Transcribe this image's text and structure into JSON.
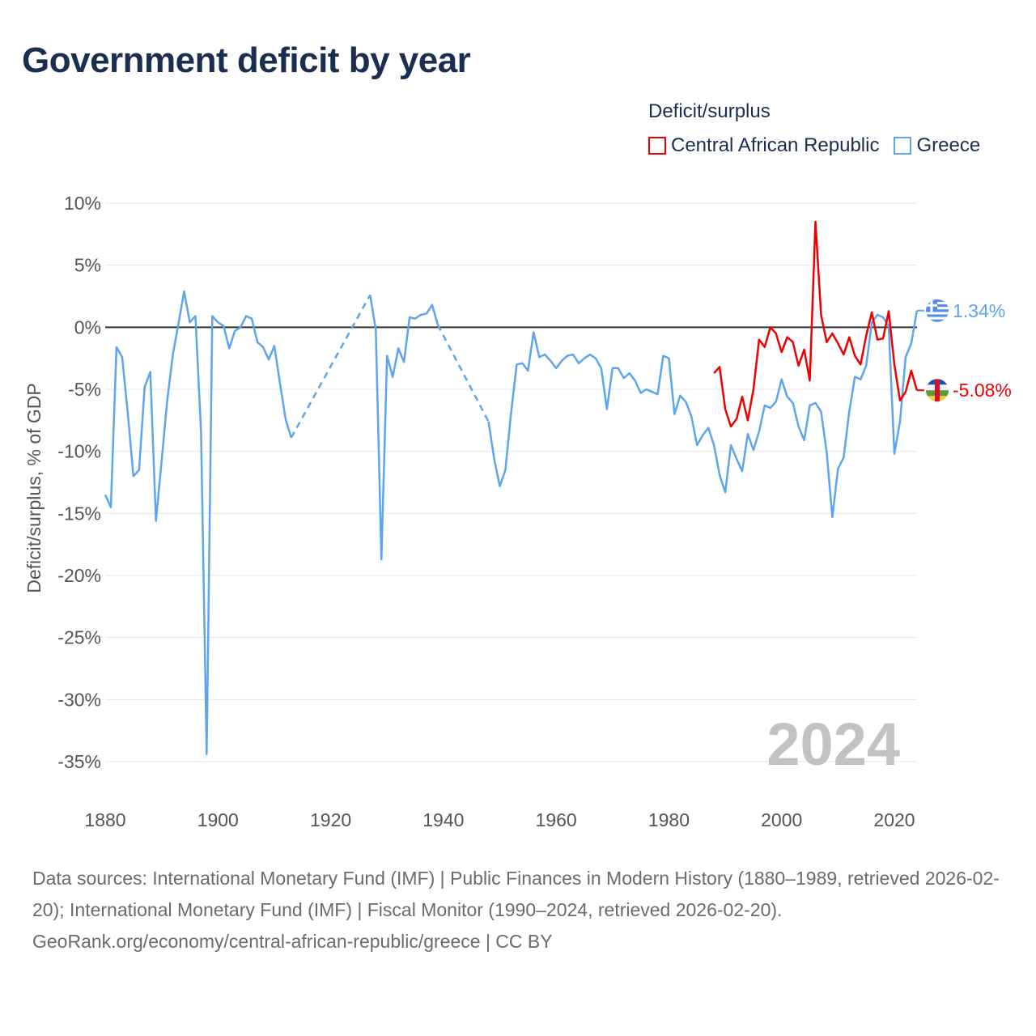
{
  "title": "Government deficit by year",
  "legend": {
    "title": "Deficit/surplus",
    "items": [
      {
        "label": "Central African Republic",
        "color": "#ee0000"
      },
      {
        "label": "Greece",
        "color": "#5da5ec"
      }
    ]
  },
  "footer": {
    "sources": "Data sources: International Monetary Fund (IMF) | Public Finances in Modern History (1880–1989, retrieved 2026-02-20); International Monetary Fund (IMF) | Fiscal Monitor (1990–2024, retrieved 2026-02-20).",
    "credit": "GeoRank.org/economy/central-african-republic/greece | CC BY"
  },
  "chart_data": {
    "type": "line",
    "title": "Government deficit by year",
    "xlabel": "",
    "ylabel": "Deficit/surplus, % of GDP",
    "xlim": [
      1880,
      2024
    ],
    "ylim": [
      -35,
      10
    ],
    "xticks": [
      1880,
      1900,
      1920,
      1940,
      1960,
      1980,
      2000,
      2020
    ],
    "yticks": [
      10,
      5,
      0,
      -5,
      -10,
      -15,
      -20,
      -25,
      -30,
      -35
    ],
    "ytick_labels": [
      "10%",
      "5%",
      "0%",
      "-5%",
      "-10%",
      "-15%",
      "-20%",
      "-25%",
      "-30%",
      "-35%"
    ],
    "xtick_labels": [
      "1880",
      "1900",
      "1920",
      "1940",
      "1960",
      "1980",
      "2000",
      "2020"
    ],
    "watermark_year": "2024",
    "grid": true,
    "legend_position": "top-right",
    "series": [
      {
        "name": "Greece",
        "color": "#5da5ec",
        "end_label": "1.34%",
        "flag": "greece",
        "gap_style": "dashed",
        "points": [
          [
            1880,
            -13.5
          ],
          [
            1881,
            -14.5
          ],
          [
            1882,
            -1.6
          ],
          [
            1883,
            -2.4
          ],
          [
            1884,
            -6.9
          ],
          [
            1885,
            -12
          ],
          [
            1886,
            -11.5
          ],
          [
            1887,
            -4.8
          ],
          [
            1888,
            -3.6
          ],
          [
            1889,
            -15.6
          ],
          [
            1890,
            -10.8
          ],
          [
            1891,
            -5.9
          ],
          [
            1892,
            -2.2
          ],
          [
            1893,
            0.3
          ],
          [
            1894,
            2.9
          ],
          [
            1895,
            0.4
          ],
          [
            1896,
            0.9
          ],
          [
            1897,
            -8.4
          ],
          [
            1898,
            -34.4
          ],
          [
            1899,
            0.9
          ],
          [
            1900,
            0.4
          ],
          [
            1901,
            0.1
          ],
          [
            1902,
            -1.7
          ],
          [
            1903,
            -0.3
          ],
          [
            1904,
            0
          ],
          [
            1905,
            0.9
          ],
          [
            1906,
            0.7
          ],
          [
            1907,
            -1.2
          ],
          [
            1908,
            -1.6
          ],
          [
            1909,
            -2.6
          ],
          [
            1910,
            -1.5
          ],
          [
            1911,
            -4.5
          ],
          [
            1912,
            -7.4
          ],
          [
            1913,
            -8.9
          ],
          [
            1927,
            2.6
          ],
          [
            1928,
            -0.2
          ],
          [
            1929,
            -18.7
          ],
          [
            1930,
            -2.3
          ],
          [
            1931,
            -4
          ],
          [
            1932,
            -1.7
          ],
          [
            1933,
            -2.8
          ],
          [
            1934,
            0.8
          ],
          [
            1935,
            0.7
          ],
          [
            1936,
            1.0
          ],
          [
            1937,
            1.1
          ],
          [
            1938,
            1.8
          ],
          [
            1939,
            0.2
          ],
          [
            1948,
            -7.6
          ],
          [
            1949,
            -10.6
          ],
          [
            1950,
            -12.8
          ],
          [
            1951,
            -11.5
          ],
          [
            1952,
            -6.9
          ],
          [
            1953,
            -3.0
          ],
          [
            1954,
            -2.9
          ],
          [
            1955,
            -3.5
          ],
          [
            1956,
            -0.4
          ],
          [
            1957,
            -2.4
          ],
          [
            1958,
            -2.2
          ],
          [
            1959,
            -2.7
          ],
          [
            1960,
            -3.3
          ],
          [
            1961,
            -2.7
          ],
          [
            1962,
            -2.3
          ],
          [
            1963,
            -2.2
          ],
          [
            1964,
            -2.9
          ],
          [
            1965,
            -2.5
          ],
          [
            1966,
            -2.2
          ],
          [
            1967,
            -2.5
          ],
          [
            1968,
            -3.3
          ],
          [
            1969,
            -6.6
          ],
          [
            1970,
            -3.3
          ],
          [
            1971,
            -3.3
          ],
          [
            1972,
            -4.1
          ],
          [
            1973,
            -3.7
          ],
          [
            1974,
            -4.3
          ],
          [
            1975,
            -5.3
          ],
          [
            1976,
            -5.0
          ],
          [
            1977,
            -5.2
          ],
          [
            1978,
            -5.4
          ],
          [
            1979,
            -2.3
          ],
          [
            1980,
            -2.5
          ],
          [
            1981,
            -7.0
          ],
          [
            1982,
            -5.5
          ],
          [
            1983,
            -6.0
          ],
          [
            1984,
            -7.2
          ],
          [
            1985,
            -9.5
          ],
          [
            1986,
            -8.7
          ],
          [
            1987,
            -8.1
          ],
          [
            1988,
            -9.5
          ],
          [
            1989,
            -11.9
          ],
          [
            1990,
            -13.3
          ],
          [
            1991,
            -9.5
          ],
          [
            1992,
            -10.6
          ],
          [
            1993,
            -11.6
          ],
          [
            1994,
            -8.6
          ],
          [
            1995,
            -9.9
          ],
          [
            1996,
            -8.4
          ],
          [
            1997,
            -6.3
          ],
          [
            1998,
            -6.5
          ],
          [
            1999,
            -6.0
          ],
          [
            2000,
            -4.2
          ],
          [
            2001,
            -5.6
          ],
          [
            2002,
            -6.1
          ],
          [
            2003,
            -8.0
          ],
          [
            2004,
            -9.1
          ],
          [
            2005,
            -6.3
          ],
          [
            2006,
            -6.1
          ],
          [
            2007,
            -6.8
          ],
          [
            2008,
            -10.1
          ],
          [
            2009,
            -15.3
          ],
          [
            2010,
            -11.4
          ],
          [
            2011,
            -10.5
          ],
          [
            2012,
            -6.8
          ],
          [
            2013,
            -4.0
          ],
          [
            2014,
            -4.2
          ],
          [
            2015,
            -3.1
          ],
          [
            2016,
            0.4
          ],
          [
            2017,
            1.0
          ],
          [
            2018,
            0.8
          ],
          [
            2019,
            0.1
          ],
          [
            2020,
            -10.2
          ],
          [
            2021,
            -7.6
          ],
          [
            2022,
            -2.4
          ],
          [
            2023,
            -1.3
          ],
          [
            2024,
            1.34
          ]
        ]
      },
      {
        "name": "Central African Republic",
        "color": "#ee0000",
        "end_label": "-5.08%",
        "flag": "central-african-republic",
        "points": [
          [
            1988,
            -3.7
          ],
          [
            1989,
            -3.2
          ],
          [
            1990,
            -6.6
          ],
          [
            1991,
            -8.0
          ],
          [
            1992,
            -7.4
          ],
          [
            1993,
            -5.6
          ],
          [
            1994,
            -7.5
          ],
          [
            1995,
            -5.0
          ],
          [
            1996,
            -1.0
          ],
          [
            1997,
            -1.6
          ],
          [
            1998,
            0.0
          ],
          [
            1999,
            -0.5
          ],
          [
            2000,
            -2.0
          ],
          [
            2001,
            -0.8
          ],
          [
            2002,
            -1.2
          ],
          [
            2003,
            -3.1
          ],
          [
            2004,
            -1.8
          ],
          [
            2005,
            -4.3
          ],
          [
            2006,
            8.5
          ],
          [
            2007,
            1.0
          ],
          [
            2008,
            -1.2
          ],
          [
            2009,
            -0.5
          ],
          [
            2010,
            -1.3
          ],
          [
            2011,
            -2.2
          ],
          [
            2012,
            -0.8
          ],
          [
            2013,
            -2.3
          ],
          [
            2014,
            -3.0
          ],
          [
            2015,
            -0.7
          ],
          [
            2016,
            1.2
          ],
          [
            2017,
            -1.0
          ],
          [
            2018,
            -0.9
          ],
          [
            2019,
            1.3
          ],
          [
            2020,
            -3.0
          ],
          [
            2021,
            -5.9
          ],
          [
            2022,
            -5.2
          ],
          [
            2023,
            -3.5
          ],
          [
            2024,
            -5.08
          ]
        ]
      }
    ]
  }
}
